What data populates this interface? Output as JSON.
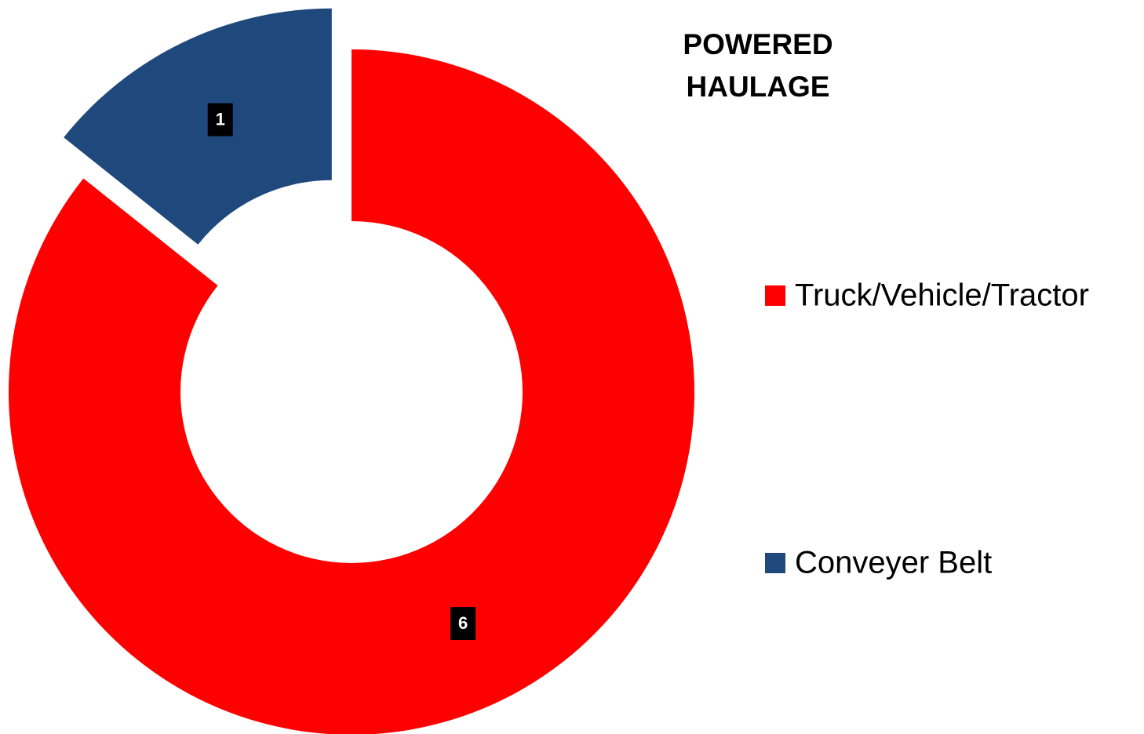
{
  "chart_data": {
    "type": "pie",
    "title": "POWERED HAULAGE",
    "categories": [
      "Truck/Vehicle/Tractor",
      "Conveyer Belt"
    ],
    "values": [
      6,
      1
    ],
    "colors": [
      "#ff0000",
      "#1f497d"
    ],
    "legend": "right"
  }
}
